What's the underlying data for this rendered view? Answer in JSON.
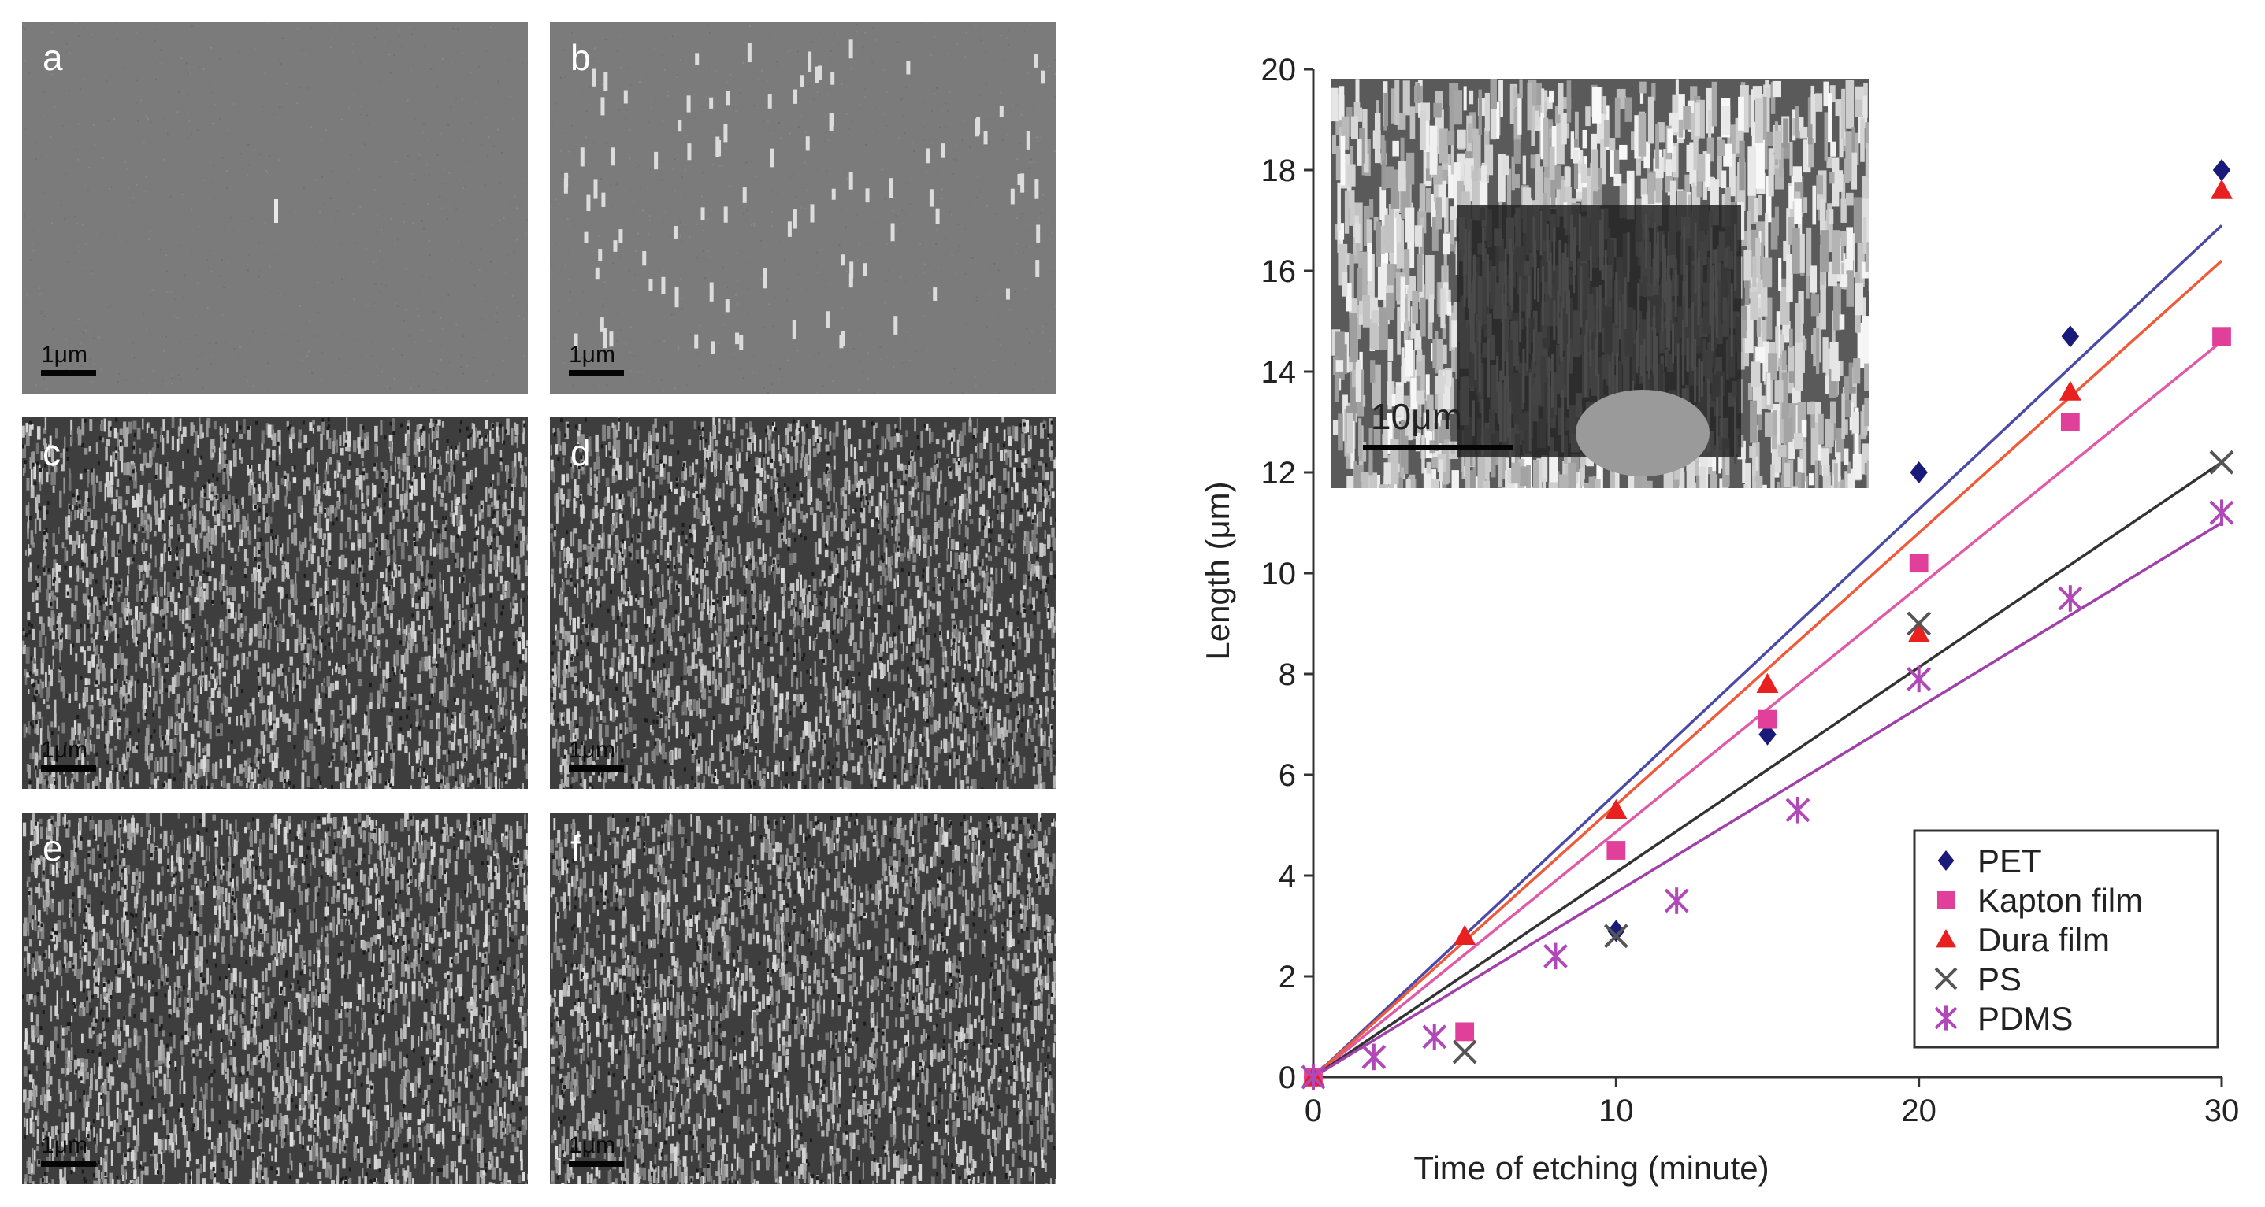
{
  "panels": [
    {
      "label": "a",
      "scale": "1μm",
      "density": "bare"
    },
    {
      "label": "b",
      "scale": "1μm",
      "density": "sparse"
    },
    {
      "label": "c",
      "scale": "1μm",
      "density": "dense"
    },
    {
      "label": "d",
      "scale": "1μm",
      "density": "dense"
    },
    {
      "label": "e",
      "scale": "1μm",
      "density": "dense"
    },
    {
      "label": "f",
      "scale": "1μm",
      "density": "dense"
    }
  ],
  "inset": {
    "scale": "10μm"
  },
  "chart_data": {
    "type": "scatter",
    "xlabel": "Time of etching (minute)",
    "ylabel": "Length (μm)",
    "xlim": [
      0,
      30
    ],
    "ylim": [
      0,
      20
    ],
    "xticks": [
      0,
      10,
      20,
      30
    ],
    "yticks": [
      0,
      2,
      4,
      6,
      8,
      10,
      12,
      14,
      16,
      18,
      20
    ],
    "grid": false,
    "legend_position": "bottom-right",
    "series": [
      {
        "name": "PET",
        "marker": "diamond",
        "color": "#1a1a7a",
        "line_color": "#4a4aa8",
        "x": [
          0,
          10,
          15,
          20,
          25,
          30
        ],
        "y": [
          0,
          2.9,
          6.8,
          12.0,
          14.7,
          18.0
        ],
        "fit": [
          0,
          16.9
        ]
      },
      {
        "name": "Kapton film",
        "marker": "square",
        "color": "#e0409a",
        "line_color": "#e05aa8",
        "x": [
          0,
          5,
          10,
          15,
          20,
          25,
          30
        ],
        "y": [
          0,
          0.9,
          4.5,
          7.1,
          10.2,
          13.0,
          14.7
        ],
        "fit": [
          0,
          14.6
        ]
      },
      {
        "name": "Dura film",
        "marker": "triangle",
        "color": "#e82020",
        "line_color": "#ee5a3a",
        "x": [
          0,
          5,
          10,
          15,
          20,
          25,
          30
        ],
        "y": [
          0,
          2.8,
          5.3,
          7.8,
          8.8,
          13.6,
          17.6
        ],
        "fit": [
          0,
          16.2
        ]
      },
      {
        "name": "PS",
        "marker": "x",
        "color": "#555555",
        "line_color": "#333333",
        "x": [
          0,
          5,
          10,
          20,
          30
        ],
        "y": [
          0,
          0.5,
          2.8,
          9.0,
          12.2
        ],
        "fit": [
          0,
          12.2
        ]
      },
      {
        "name": "PDMS",
        "marker": "asterisk",
        "color": "#b048b8",
        "line_color": "#a040a8",
        "x": [
          0,
          2,
          4,
          8,
          12,
          16,
          20,
          25,
          30
        ],
        "y": [
          0,
          0.4,
          0.8,
          2.4,
          3.5,
          5.3,
          7.9,
          9.5,
          11.2
        ],
        "fit": [
          0,
          11.0
        ]
      }
    ]
  }
}
